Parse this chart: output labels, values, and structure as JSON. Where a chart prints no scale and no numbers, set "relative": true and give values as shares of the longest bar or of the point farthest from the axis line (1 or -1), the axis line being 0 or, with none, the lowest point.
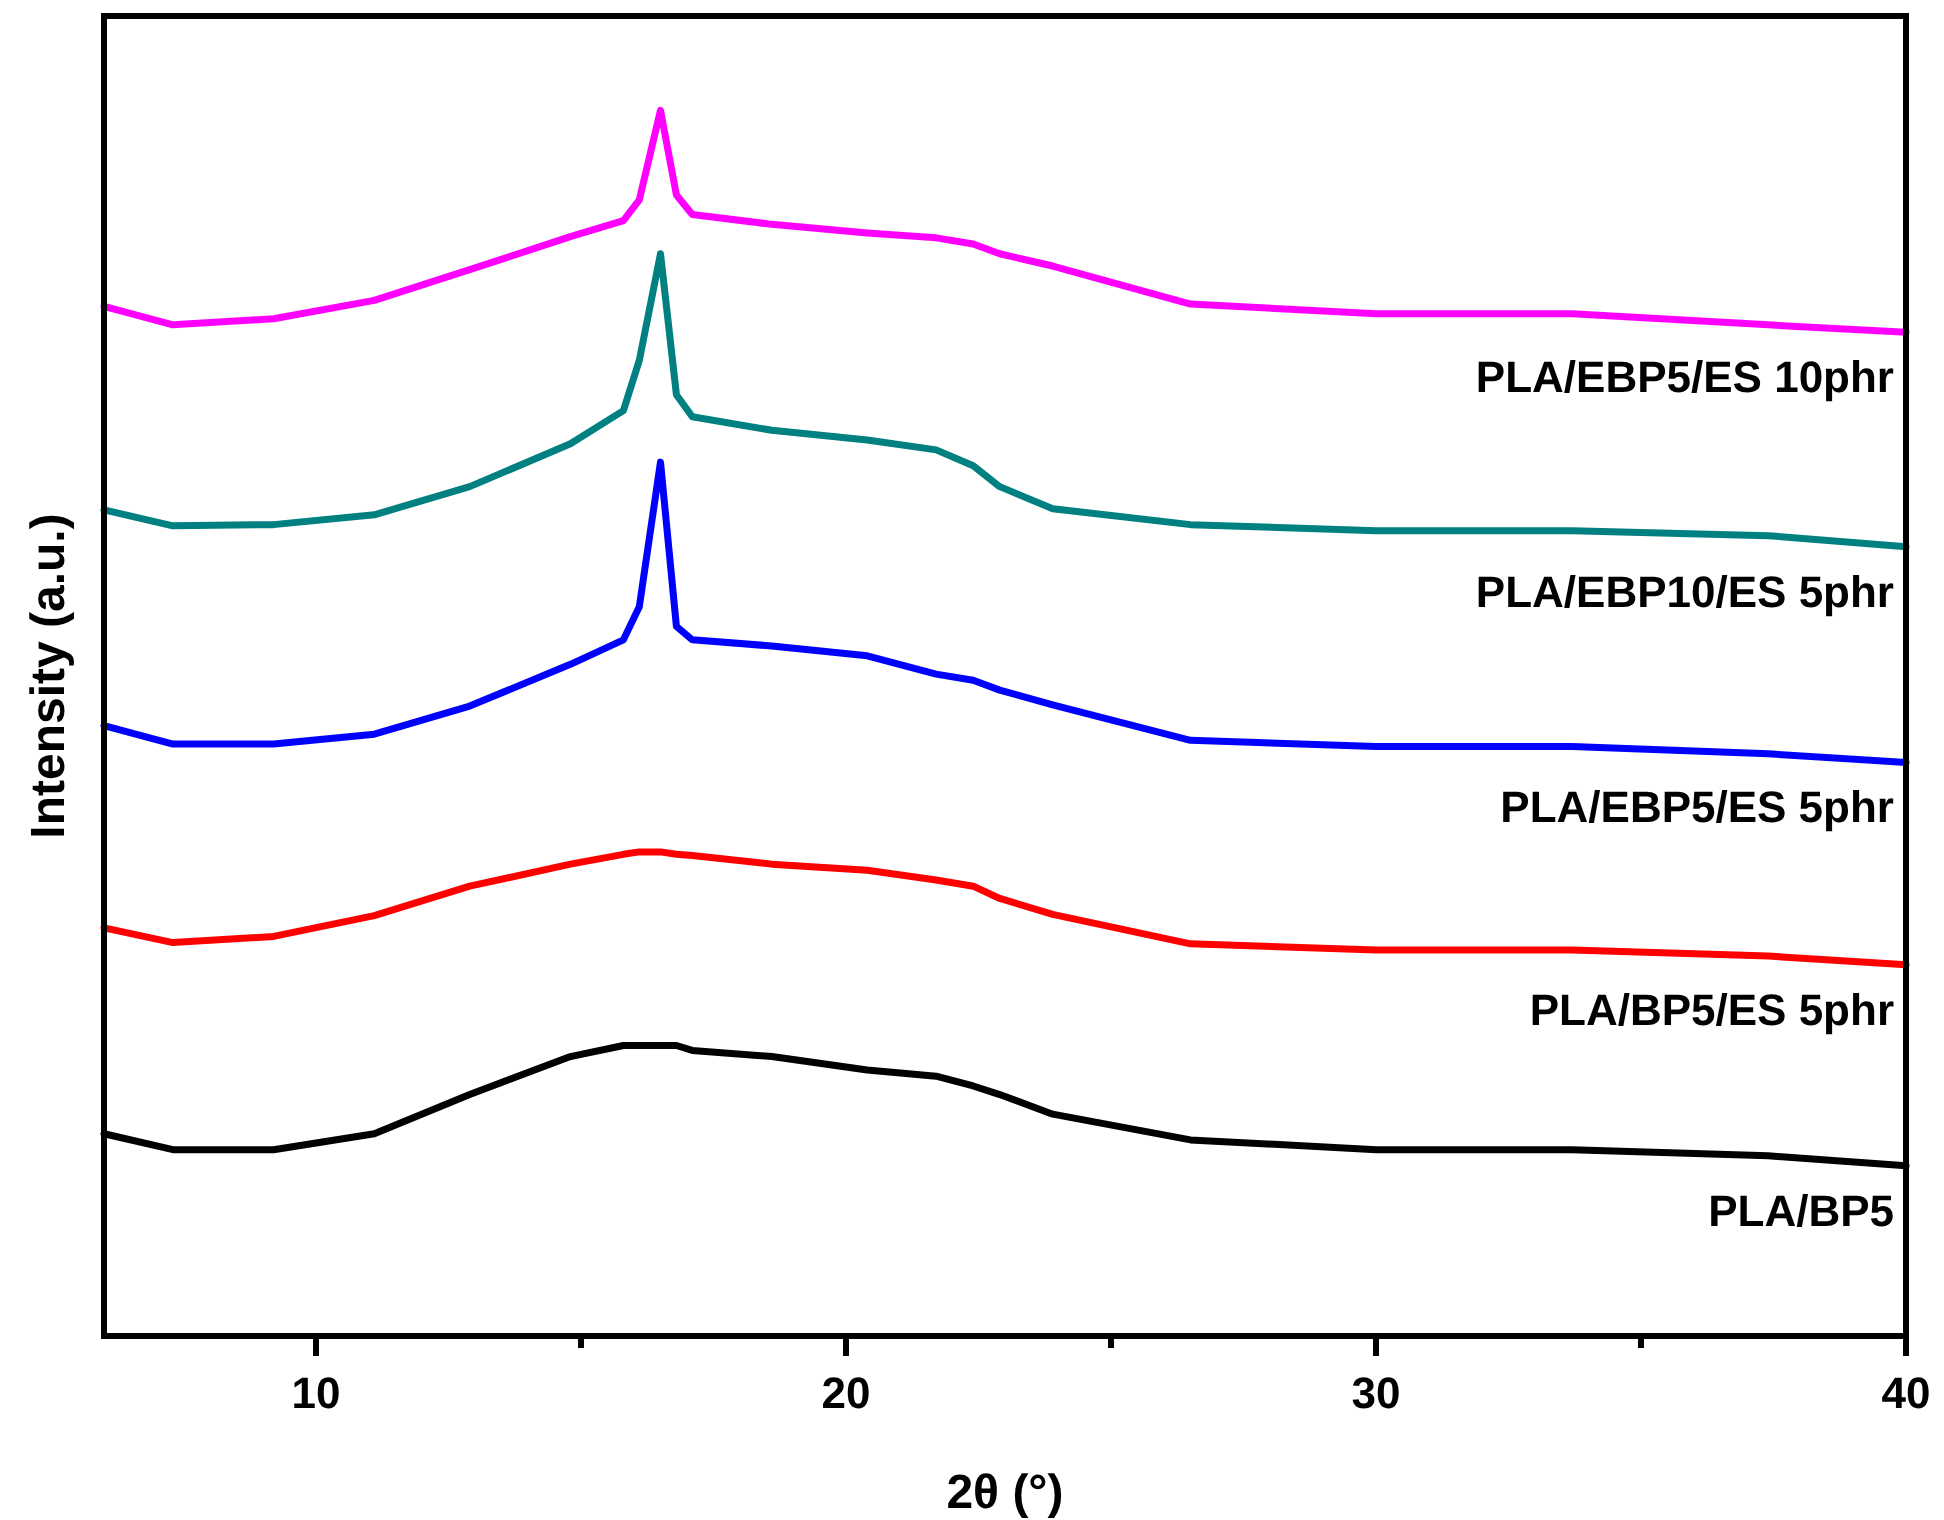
{
  "chart_data": {
    "type": "line",
    "xlabel": "2θ (°)",
    "ylabel": "Intensity (a.u.)",
    "relative": true,
    "x": [
      6,
      7.3,
      9.2,
      11.1,
      12.9,
      14.8,
      15.8,
      16.1,
      16.5,
      16.8,
      17.1,
      18.6,
      20.4,
      21.7,
      22.4,
      22.9,
      23.9,
      26.5,
      30,
      33.7,
      37.4,
      40
    ],
    "xlim": [
      6,
      40
    ],
    "xticks": [
      10,
      {
        "value": 15,
        "label": null
      },
      20,
      {
        "value": 25,
        "label": null
      },
      30,
      {
        "value": 35,
        "label": null
      },
      40
    ],
    "tick_labels": "x",
    "legend": false,
    "marker": "none",
    "line_style": "solid",
    "series": [
      {
        "name": "PLA/EBP5/ES 10phr",
        "color": "#ff00ff",
        "values": [
          0.84,
          0.825,
          0.83,
          0.845,
          0.87,
          0.897,
          0.91,
          0.927,
          1.0,
          0.931,
          0.915,
          0.907,
          0.9,
          0.896,
          0.891,
          0.883,
          0.873,
          0.842,
          0.834,
          0.834,
          0.825,
          0.819
        ]
      },
      {
        "name": "PLA/EBP10/ES 5phr",
        "color": "#008080",
        "values": [
          0.674,
          0.661,
          0.662,
          0.67,
          0.693,
          0.728,
          0.755,
          0.796,
          0.883,
          0.768,
          0.75,
          0.739,
          0.731,
          0.723,
          0.71,
          0.693,
          0.675,
          0.662,
          0.657,
          0.657,
          0.653,
          0.644
        ]
      },
      {
        "name": "PLA/EBP5/ES 5phr",
        "color": "#0000ff",
        "values": [
          0.498,
          0.483,
          0.483,
          0.491,
          0.514,
          0.548,
          0.568,
          0.595,
          0.713,
          0.579,
          0.568,
          0.563,
          0.555,
          0.54,
          0.535,
          0.527,
          0.515,
          0.486,
          0.481,
          0.481,
          0.475,
          0.468
        ]
      },
      {
        "name": "PLA/BP5/ES 5phr",
        "color": "#ff0000",
        "values": [
          0.333,
          0.321,
          0.326,
          0.343,
          0.367,
          0.385,
          0.393,
          0.395,
          0.395,
          0.393,
          0.392,
          0.385,
          0.38,
          0.372,
          0.367,
          0.357,
          0.344,
          0.32,
          0.315,
          0.315,
          0.31,
          0.303
        ]
      },
      {
        "name": "PLA/BP5",
        "color": "#000000",
        "values": [
          0.165,
          0.152,
          0.152,
          0.165,
          0.197,
          0.228,
          0.237,
          0.237,
          0.237,
          0.237,
          0.233,
          0.228,
          0.217,
          0.212,
          0.204,
          0.197,
          0.181,
          0.16,
          0.152,
          0.152,
          0.147,
          0.139
        ]
      }
    ]
  }
}
